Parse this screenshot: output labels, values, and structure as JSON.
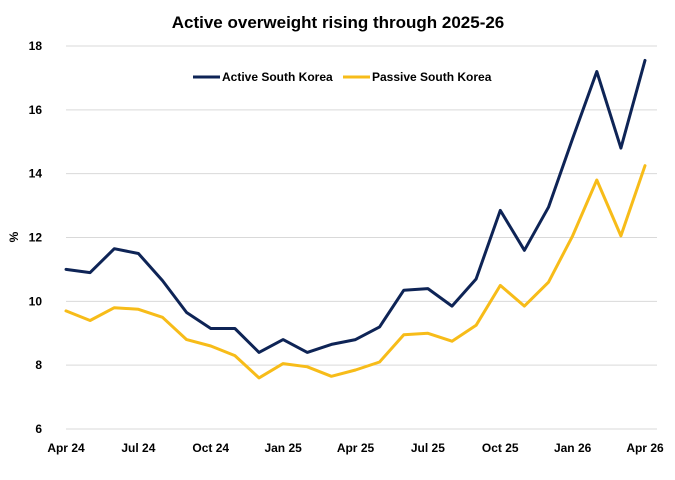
{
  "chart_data": {
    "type": "line",
    "title": "Active overweight rising through 2025-26",
    "xlabel": "",
    "ylabel": "%",
    "ylim": [
      6,
      18
    ],
    "yticks": [
      6,
      8,
      10,
      12,
      14,
      16,
      18
    ],
    "grid": true,
    "legend_position": "top",
    "x": [
      "Apr 24",
      "May 24",
      "Jun 24",
      "Jul 24",
      "Aug 24",
      "Sep 24",
      "Oct 24",
      "Nov 24",
      "Dec 24",
      "Jan 25",
      "Feb 25",
      "Mar 25",
      "Apr 25",
      "May 25",
      "Jun 25",
      "Jul 25",
      "Aug 25",
      "Sep 25",
      "Oct 25",
      "Nov 25",
      "Dec 25",
      "Jan 26",
      "Feb 26",
      "Mar 26",
      "Apr 26"
    ],
    "x_tick_labels": [
      "Apr 24",
      "Jul 24",
      "Oct 24",
      "Jan 25",
      "Apr 25",
      "Jul 25",
      "Oct 25",
      "Jan 26",
      "Apr 26"
    ],
    "series": [
      {
        "name": "Active South Korea",
        "color": "#0e2456",
        "values": [
          11.0,
          10.9,
          11.65,
          11.5,
          10.65,
          9.65,
          9.15,
          9.15,
          8.4,
          8.8,
          8.4,
          8.65,
          8.8,
          9.2,
          10.35,
          10.4,
          9.85,
          10.7,
          12.85,
          11.6,
          12.95,
          15.1,
          17.2,
          14.8,
          17.55
        ]
      },
      {
        "name": "Passive South Korea",
        "color": "#f7bc19",
        "values": [
          9.7,
          9.4,
          9.8,
          9.75,
          9.5,
          8.8,
          8.6,
          8.3,
          7.6,
          8.05,
          7.95,
          7.65,
          7.85,
          8.1,
          8.95,
          9.0,
          8.75,
          9.25,
          10.5,
          9.85,
          10.6,
          12.05,
          13.8,
          12.05,
          14.25
        ]
      }
    ]
  }
}
